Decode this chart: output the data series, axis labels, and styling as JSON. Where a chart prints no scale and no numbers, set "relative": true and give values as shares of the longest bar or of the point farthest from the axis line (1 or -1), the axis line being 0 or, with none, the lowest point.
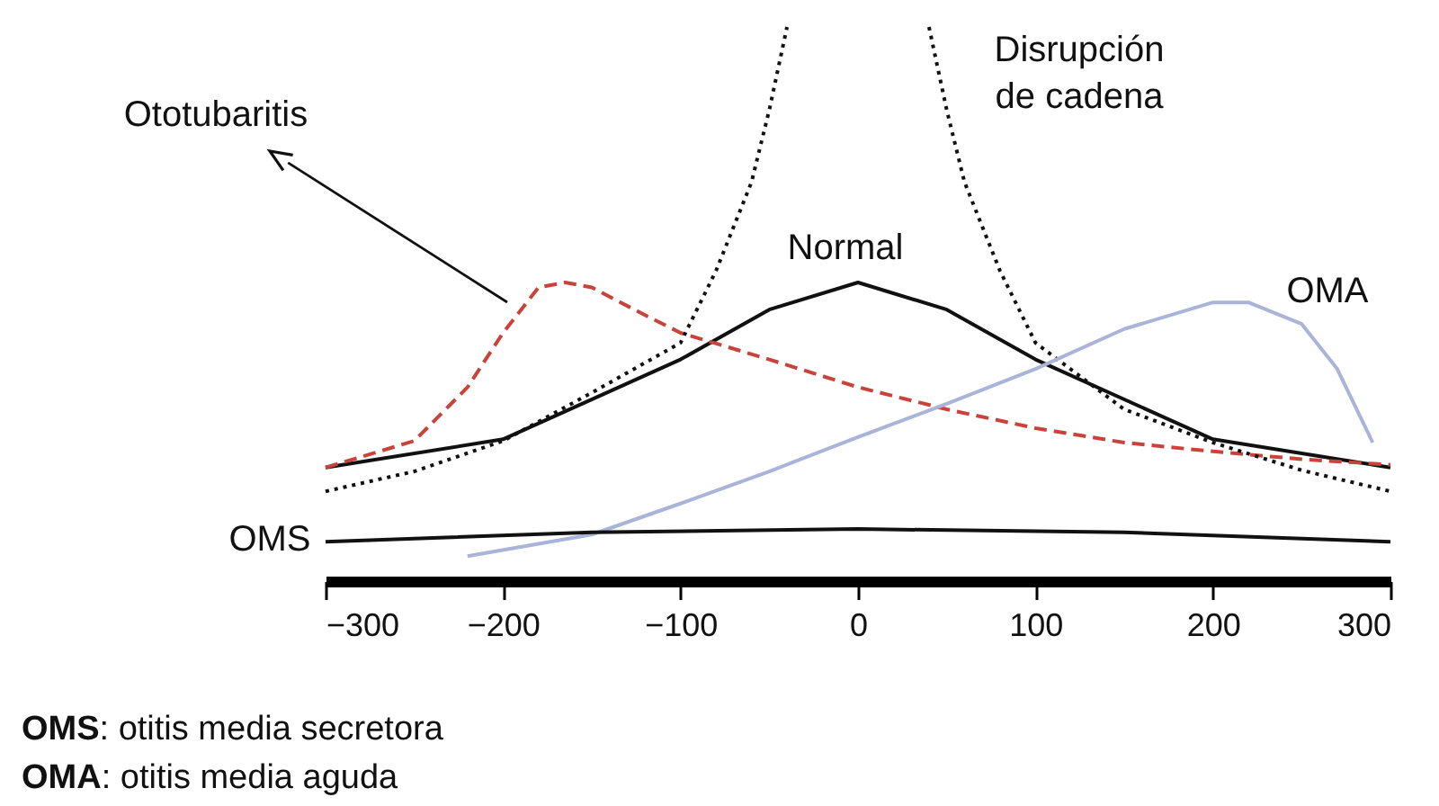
{
  "chart_data": {
    "type": "line",
    "relative": true,
    "xlim": [
      -300,
      300
    ],
    "xticks": [
      -300,
      -200,
      -100,
      0,
      100,
      200,
      300
    ],
    "legend": false,
    "grid": false,
    "tick_labels": "x",
    "series": [
      {
        "name": "Normal",
        "color": "#111111",
        "line_style": "solid",
        "x": [
          -300,
          -200,
          -100,
          -50,
          0,
          50,
          100,
          200,
          300
        ],
        "values": [
          0.205,
          0.256,
          0.4,
          0.49,
          0.539,
          0.49,
          0.4,
          0.256,
          0.205
        ]
      },
      {
        "name": "Ototubaritis",
        "color": "#c9433a",
        "line_style": "dashed",
        "x": [
          -300,
          -250,
          -220,
          -200,
          -180,
          -165,
          -150,
          -120,
          -100,
          -50,
          0,
          50,
          100,
          150,
          200,
          250,
          300
        ],
        "values": [
          0.205,
          0.253,
          0.35,
          0.448,
          0.53,
          0.539,
          0.53,
          0.48,
          0.448,
          0.4,
          0.35,
          0.31,
          0.276,
          0.25,
          0.234,
          0.22,
          0.21
        ]
      },
      {
        "color": "#111111",
        "line_style": "dotted",
        "x": [
          -300,
          -250,
          -200,
          -150,
          -100,
          -80,
          -60,
          -50,
          -40
        ],
        "values": [
          0.162,
          0.198,
          0.253,
          0.34,
          0.43,
          0.56,
          0.72,
          0.85,
          1
        ]
      },
      {
        "name": "Disrupción de cadena",
        "color": "#111111",
        "line_style": "dotted",
        "x": [
          40,
          50,
          60,
          80,
          100,
          150,
          200,
          250,
          300
        ],
        "values": [
          1,
          0.85,
          0.72,
          0.56,
          0.43,
          0.31,
          0.25,
          0.2,
          0.162
        ]
      },
      {
        "name": "OMA",
        "color": "#aab4d8",
        "line_style": "solid",
        "x": [
          -220,
          -150,
          -100,
          -50,
          0,
          50,
          100,
          150,
          200,
          220,
          250,
          270,
          290
        ],
        "values": [
          0.045,
          0.084,
          0.14,
          0.198,
          0.26,
          0.32,
          0.383,
          0.455,
          0.503,
          0.503,
          0.464,
          0.383,
          0.25
        ]
      },
      {
        "name": "OMS",
        "color": "#111111",
        "line_style": "solid",
        "x": [
          -300,
          -150,
          0,
          150,
          300
        ],
        "values": [
          0.071,
          0.088,
          0.094,
          0.088,
          0.071
        ]
      }
    ],
    "annotations": [
      "OMS: otitis media secretora",
      "OMA: otitis media aguda"
    ]
  }
}
